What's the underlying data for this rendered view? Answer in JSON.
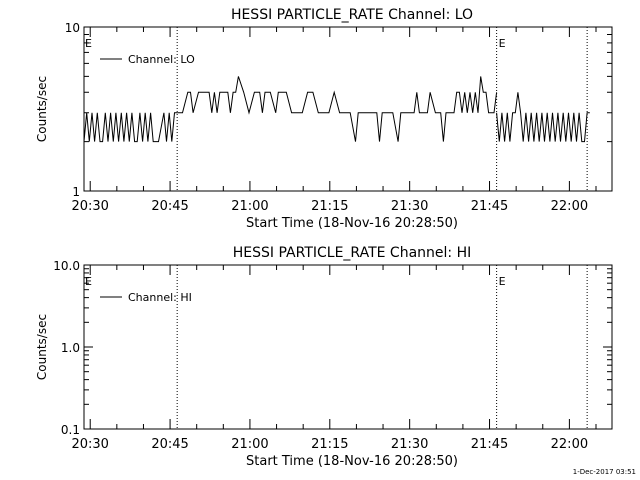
{
  "footer": {
    "timestamp": "1-Dec-2017 03:51"
  },
  "chart_data": [
    {
      "type": "line",
      "title": "HESSI PARTICLE_RATE Channel: LO",
      "xlabel": "Start Time (18-Nov-16 20:28:50)",
      "ylabel": "Counts/sec",
      "yscale": "log",
      "ylim": [
        1,
        10
      ],
      "yticks": [
        "10",
        "1"
      ],
      "yticks_values": [
        10,
        1
      ],
      "xlim": [
        "20:28:50",
        "22:08:00"
      ],
      "xticks": [
        "20:30",
        "20:45",
        "21:00",
        "21:15",
        "21:30",
        "21:45",
        "22:00"
      ],
      "xticks_minutes": [
        1.1667,
        16.1667,
        31.1667,
        46.1667,
        61.1667,
        76.1667,
        91.1667
      ],
      "legend": {
        "label": "Channel: LO",
        "position": "top-left"
      },
      "event_markers": [
        {
          "time_min": 17.5,
          "label": ""
        },
        {
          "time_min": 77.5,
          "label": "E"
        },
        {
          "time_min": 94.5,
          "label": ""
        }
      ],
      "left_marker_label": "E",
      "series": [
        {
          "name": "Channel: LO",
          "segments": [
            {
              "t": [
                0,
                0.5,
                1,
                1.5,
                2,
                2.5,
                3,
                3.5,
                4,
                4.5,
                5,
                5.5,
                6,
                6.5,
                7,
                7.5,
                8,
                8.5,
                9,
                9.5,
                10,
                10.5,
                11,
                11.5,
                12,
                12.5,
                13,
                14,
                15,
                15.5,
                16,
                16.5,
                17,
                17.5
              ],
              "v": [
                2,
                3,
                2,
                3,
                2,
                3,
                2,
                2,
                3,
                2,
                3,
                2,
                3,
                2,
                3,
                2,
                3,
                2,
                3,
                2,
                2,
                3,
                2,
                3,
                2,
                3,
                2,
                2,
                3,
                2,
                3,
                2,
                3,
                3
              ]
            },
            {
              "t": [
                17.5,
                18.5,
                19.5,
                20,
                20.5,
                21.5,
                22.5,
                23,
                23.5,
                24,
                24.5,
                25,
                25.5,
                26,
                27,
                27.5,
                28,
                28.5,
                29,
                30,
                31,
                32,
                33,
                33.5,
                34,
                34.5,
                35,
                36,
                36.5,
                37,
                38,
                39,
                40,
                41,
                42,
                43,
                44,
                44.5,
                45,
                45.5,
                46,
                47,
                48,
                49,
                50,
                51,
                51.5,
                52,
                53,
                54,
                55,
                55.5,
                56,
                56.5,
                57,
                58,
                59,
                59.5,
                60,
                61,
                62,
                62.5,
                63,
                64,
                64.5,
                65,
                66,
                66.5,
                67,
                67.5,
                68,
                68.5,
                69,
                69.5,
                70,
                70.5,
                71,
                71.5,
                72,
                72.5,
                73,
                73.5,
                74,
                74.5,
                75,
                75.5,
                76,
                76.5,
                77,
                77.5
              ],
              "v": [
                3,
                3,
                4,
                4,
                3,
                4,
                4,
                4,
                4,
                3,
                4,
                3,
                4,
                4,
                4,
                3,
                4,
                4,
                5,
                4,
                3,
                4,
                4,
                3,
                4,
                4,
                4,
                3,
                4,
                4,
                4,
                3,
                3,
                3,
                4,
                4,
                3,
                3,
                3,
                3,
                3,
                4,
                3,
                3,
                3,
                2,
                3,
                3,
                3,
                3,
                3,
                2,
                3,
                3,
                3,
                3,
                2,
                3,
                3,
                3,
                3,
                4,
                3,
                3,
                3,
                4,
                3,
                3,
                3,
                2,
                3,
                3,
                3,
                3,
                4,
                4,
                3,
                4,
                3,
                4,
                3,
                4,
                3,
                5,
                4,
                4,
                3,
                3,
                3,
                4,
                3,
                3
              ]
            },
            {
              "t": [
                77.5,
                78,
                78.5,
                79,
                79.5,
                80,
                80.5,
                81,
                81.5,
                82,
                82.5,
                83,
                83.5,
                84,
                84.5,
                85,
                85.5,
                86,
                86.5,
                87,
                87.5,
                88,
                88.5,
                89,
                89.5,
                90,
                90.5,
                91,
                91.5,
                92,
                92.5,
                93,
                93.5,
                94,
                94.5,
                95
              ],
              "v": [
                3,
                2,
                3,
                2,
                3,
                2,
                3,
                3,
                4,
                3,
                2,
                3,
                2,
                3,
                2,
                3,
                2,
                3,
                2,
                3,
                2,
                3,
                2,
                3,
                2,
                3,
                2,
                3,
                2,
                3,
                2,
                3,
                2,
                2,
                3,
                3
              ]
            }
          ]
        }
      ]
    },
    {
      "type": "line",
      "title": "HESSI PARTICLE_RATE Channel: HI",
      "xlabel": "Start Time (18-Nov-16 20:28:50)",
      "ylabel": "Counts/sec",
      "yscale": "log",
      "ylim": [
        0.1,
        10
      ],
      "yticks": [
        "10.0",
        "1.0",
        "0.1"
      ],
      "yticks_values": [
        10,
        1,
        0.1
      ],
      "xlim": [
        "20:28:50",
        "22:08:00"
      ],
      "xticks": [
        "20:30",
        "20:45",
        "21:00",
        "21:15",
        "21:30",
        "21:45",
        "22:00"
      ],
      "xticks_minutes": [
        1.1667,
        16.1667,
        31.1667,
        46.1667,
        61.1667,
        76.1667,
        91.1667
      ],
      "legend": {
        "label": "Channel: HI",
        "position": "top-left"
      },
      "event_markers": [
        {
          "time_min": 17.5,
          "label": ""
        },
        {
          "time_min": 77.5,
          "label": "E"
        },
        {
          "time_min": 94.5,
          "label": ""
        }
      ],
      "left_marker_label": "E",
      "series": [
        {
          "name": "Channel: HI",
          "segments": []
        }
      ]
    }
  ]
}
